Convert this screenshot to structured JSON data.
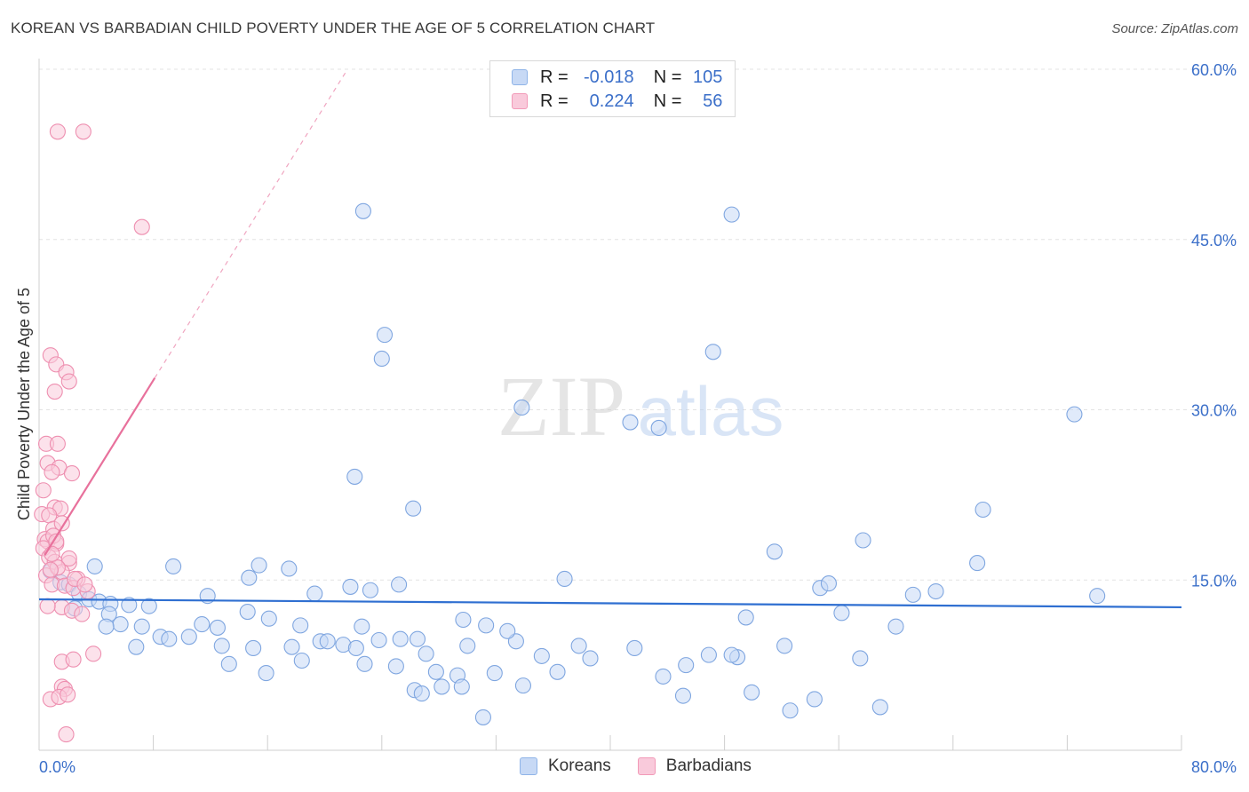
{
  "title": "KOREAN VS BARBADIAN CHILD POVERTY UNDER THE AGE OF 5 CORRELATION CHART",
  "source": "Source: ZipAtlas.com",
  "watermark": {
    "zip": "ZIP",
    "atlas": "atlas"
  },
  "legend": {
    "r_label": "R =",
    "n_label": "N =",
    "rows": [
      {
        "name": "Koreans",
        "r": "-0.018",
        "n": "105",
        "color": "#8fb4e8",
        "fill": "#c7d9f5"
      },
      {
        "name": "Barbadians",
        "r": "0.224",
        "n": "56",
        "color": "#f29ab8",
        "fill": "#f9cadb"
      }
    ]
  },
  "bottom_legend": {
    "koreans": "Koreans",
    "barbadians": "Barbadians"
  },
  "colors": {
    "blue_line": "#2f6fd1",
    "pink_line": "#e8719c",
    "axis_label": "#3b6fc9",
    "grid": "#e3e3e3"
  },
  "chart_data": {
    "type": "scatter",
    "xlabel": "",
    "ylabel": "Child Poverty Under the Age of 5",
    "xlim": [
      0,
      80
    ],
    "ylim": [
      0,
      60
    ],
    "x_tick_labels": [
      "0.0%",
      "80.0%"
    ],
    "y_ticks": [
      15,
      30,
      45,
      60
    ],
    "y_tick_labels": [
      "15.0%",
      "30.0%",
      "45.0%",
      "60.0%"
    ],
    "series": [
      {
        "name": "Koreans",
        "trend": {
          "x": [
            0,
            80
          ],
          "y": [
            13.3,
            12.6
          ]
        },
        "points": [
          [
            0.8,
            15.8
          ],
          [
            1.5,
            14.8
          ],
          [
            2.1,
            14.6
          ],
          [
            2.8,
            13.8
          ],
          [
            3.5,
            13.3
          ],
          [
            4.2,
            13.1
          ],
          [
            5,
            12.9
          ],
          [
            6.3,
            12.8
          ],
          [
            7.7,
            12.7
          ],
          [
            3.9,
            16.2
          ],
          [
            2.5,
            12.5
          ],
          [
            4.9,
            12.0
          ],
          [
            5.7,
            11.1
          ],
          [
            4.7,
            10.9
          ],
          [
            7.2,
            10.9
          ],
          [
            8.5,
            10.0
          ],
          [
            9.1,
            9.8
          ],
          [
            11.4,
            11.1
          ],
          [
            12.5,
            10.8
          ],
          [
            14.6,
            12.2
          ],
          [
            16.1,
            11.6
          ],
          [
            18.3,
            11.0
          ],
          [
            19.7,
            9.6
          ],
          [
            21.3,
            9.3
          ],
          [
            22.6,
            10.9
          ],
          [
            23.8,
            9.7
          ],
          [
            26.5,
            9.8
          ],
          [
            29.7,
            11.5
          ],
          [
            31.3,
            11.0
          ],
          [
            33.4,
            9.6
          ],
          [
            9.4,
            16.2
          ],
          [
            11.8,
            13.6
          ],
          [
            14.7,
            15.2
          ],
          [
            17.5,
            16.0
          ],
          [
            19.3,
            13.8
          ],
          [
            21.8,
            14.4
          ],
          [
            23.2,
            14.1
          ],
          [
            25.2,
            14.6
          ],
          [
            36.8,
            15.1
          ],
          [
            6.8,
            9.1
          ],
          [
            10.5,
            10.0
          ],
          [
            12.8,
            9.2
          ],
          [
            15.0,
            9.0
          ],
          [
            17.7,
            9.1
          ],
          [
            18.4,
            7.9
          ],
          [
            20.2,
            9.6
          ],
          [
            22.2,
            9.0
          ],
          [
            25.3,
            9.8
          ],
          [
            27.1,
            8.5
          ],
          [
            30.0,
            9.2
          ],
          [
            13.3,
            7.6
          ],
          [
            15.9,
            6.8
          ],
          [
            22.8,
            7.6
          ],
          [
            25.0,
            7.4
          ],
          [
            27.8,
            6.9
          ],
          [
            29.3,
            6.6
          ],
          [
            26.3,
            5.3
          ],
          [
            28.2,
            5.6
          ],
          [
            29.6,
            5.6
          ],
          [
            31.9,
            6.8
          ],
          [
            36.3,
            6.9
          ],
          [
            37.8,
            9.2
          ],
          [
            38.6,
            8.1
          ],
          [
            41.7,
            9.0
          ],
          [
            43.7,
            6.5
          ],
          [
            45.3,
            7.5
          ],
          [
            46.9,
            8.4
          ],
          [
            48.9,
            8.2
          ],
          [
            52.2,
            9.2
          ],
          [
            57.5,
            8.1
          ],
          [
            60.0,
            10.9
          ],
          [
            54.7,
            14.3
          ],
          [
            56.2,
            12.1
          ],
          [
            61.2,
            13.7
          ],
          [
            57.7,
            18.5
          ],
          [
            65.7,
            16.5
          ],
          [
            66.1,
            21.2
          ],
          [
            62.8,
            14.0
          ],
          [
            51.5,
            17.5
          ],
          [
            49.5,
            11.7
          ],
          [
            48.5,
            8.4
          ],
          [
            45.1,
            4.8
          ],
          [
            49.9,
            5.1
          ],
          [
            52.6,
            3.5
          ],
          [
            54.3,
            4.5
          ],
          [
            58.9,
            3.8
          ],
          [
            55.3,
            14.7
          ],
          [
            47.2,
            35.1
          ],
          [
            48.5,
            47.2
          ],
          [
            43.4,
            28.4
          ],
          [
            41.4,
            28.9
          ],
          [
            33.8,
            30.2
          ],
          [
            22.7,
            47.5
          ],
          [
            24.2,
            36.6
          ],
          [
            24.0,
            34.5
          ],
          [
            22.1,
            24.1
          ],
          [
            26.2,
            21.3
          ],
          [
            15.4,
            16.3
          ],
          [
            32.8,
            10.5
          ],
          [
            35.2,
            8.3
          ],
          [
            31.1,
            2.9
          ],
          [
            33.9,
            5.7
          ],
          [
            26.8,
            5.0
          ],
          [
            74.1,
            13.6
          ],
          [
            72.5,
            29.6
          ]
        ]
      },
      {
        "name": "Barbadians",
        "trend": {
          "x": [
            0.4,
            8.1
          ],
          "y": [
            17.2,
            32.8
          ]
        },
        "trend_extension": {
          "x": [
            8.1,
            21.6
          ],
          "y": [
            32.8,
            60.0
          ]
        },
        "points": [
          [
            1.3,
            54.5
          ],
          [
            3.1,
            54.5
          ],
          [
            7.2,
            46.1
          ],
          [
            0.8,
            34.8
          ],
          [
            1.2,
            34.0
          ],
          [
            1.9,
            33.3
          ],
          [
            2.1,
            32.5
          ],
          [
            1.1,
            31.6
          ],
          [
            0.5,
            27.0
          ],
          [
            1.3,
            27.0
          ],
          [
            0.6,
            25.3
          ],
          [
            1.4,
            24.9
          ],
          [
            0.9,
            24.5
          ],
          [
            2.3,
            24.4
          ],
          [
            0.3,
            22.9
          ],
          [
            1.1,
            21.4
          ],
          [
            1.5,
            21.3
          ],
          [
            0.2,
            20.8
          ],
          [
            0.7,
            20.7
          ],
          [
            1.0,
            19.5
          ],
          [
            0.4,
            18.6
          ],
          [
            0.6,
            18.4
          ],
          [
            1.2,
            18.2
          ],
          [
            0.3,
            17.8
          ],
          [
            0.7,
            17.0
          ],
          [
            1.1,
            16.6
          ],
          [
            2.1,
            16.5
          ],
          [
            1.6,
            15.7
          ],
          [
            0.5,
            15.4
          ],
          [
            2.7,
            15.1
          ],
          [
            0.9,
            14.6
          ],
          [
            1.8,
            14.5
          ],
          [
            2.4,
            14.3
          ],
          [
            3.4,
            14.0
          ],
          [
            1.6,
            12.6
          ],
          [
            0.6,
            12.7
          ],
          [
            2.3,
            12.3
          ],
          [
            3.0,
            12.0
          ],
          [
            1.6,
            7.8
          ],
          [
            2.4,
            8.0
          ],
          [
            3.8,
            8.5
          ],
          [
            1.6,
            5.6
          ],
          [
            1.8,
            5.4
          ],
          [
            0.8,
            4.5
          ],
          [
            1.4,
            4.7
          ],
          [
            2.0,
            4.9
          ],
          [
            1.9,
            1.4
          ],
          [
            2.1,
            16.9
          ],
          [
            1.3,
            16.1
          ],
          [
            0.8,
            15.9
          ],
          [
            1.0,
            18.9
          ],
          [
            1.6,
            20.0
          ],
          [
            1.2,
            18.4
          ],
          [
            0.9,
            17.3
          ],
          [
            2.5,
            15.1
          ],
          [
            3.2,
            14.6
          ]
        ]
      }
    ]
  }
}
